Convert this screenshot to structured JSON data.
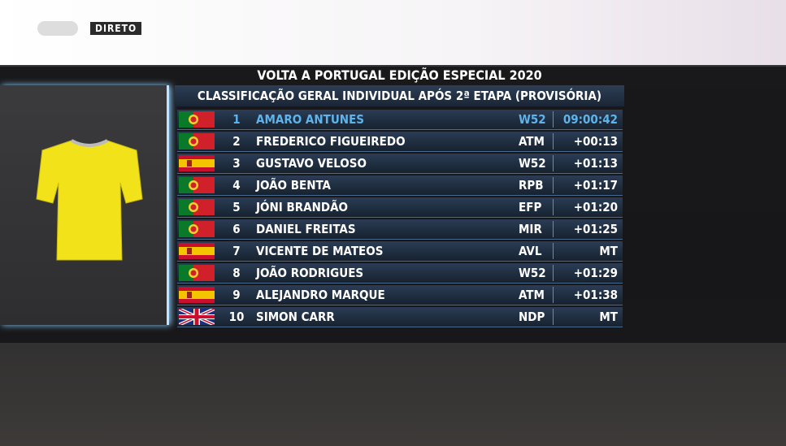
{
  "badge": "DIRETO",
  "title": "VOLTA A PORTUGAL EDIÇÃO ESPECIAL 2020",
  "subtitle": "CLASSIFICAÇÃO GERAL INDIVIDUAL APÓS 2ª ETAPA (PROVISÓRIA)",
  "table": {
    "rows": [
      [
        "1",
        "AMARO ANTUNES",
        "W52",
        "09:00:42"
      ],
      [
        "2",
        "FREDERICO FIGUEIREDO",
        "ATM",
        "+00:13"
      ],
      [
        "3",
        "GUSTAVO VELOSO",
        "W52",
        "+01:13"
      ],
      [
        "4",
        "JOÃO BENTA",
        "RPB",
        "+01:17"
      ],
      [
        "5",
        "JÓNI BRANDÃO",
        "EFP",
        "+01:20"
      ],
      [
        "6",
        "DANIEL FREITAS",
        "MIR",
        "+01:25"
      ],
      [
        "7",
        "VICENTE DE MATEOS",
        "AVL",
        "MT"
      ],
      [
        "8",
        "JOÃO RODRIGUES",
        "W52",
        "+01:29"
      ],
      [
        "9",
        "ALEJANDRO MARQUE",
        "ATM",
        "+01:38"
      ],
      [
        "10",
        "SIMON CARR",
        "NDP",
        "MT"
      ]
    ]
  }
}
